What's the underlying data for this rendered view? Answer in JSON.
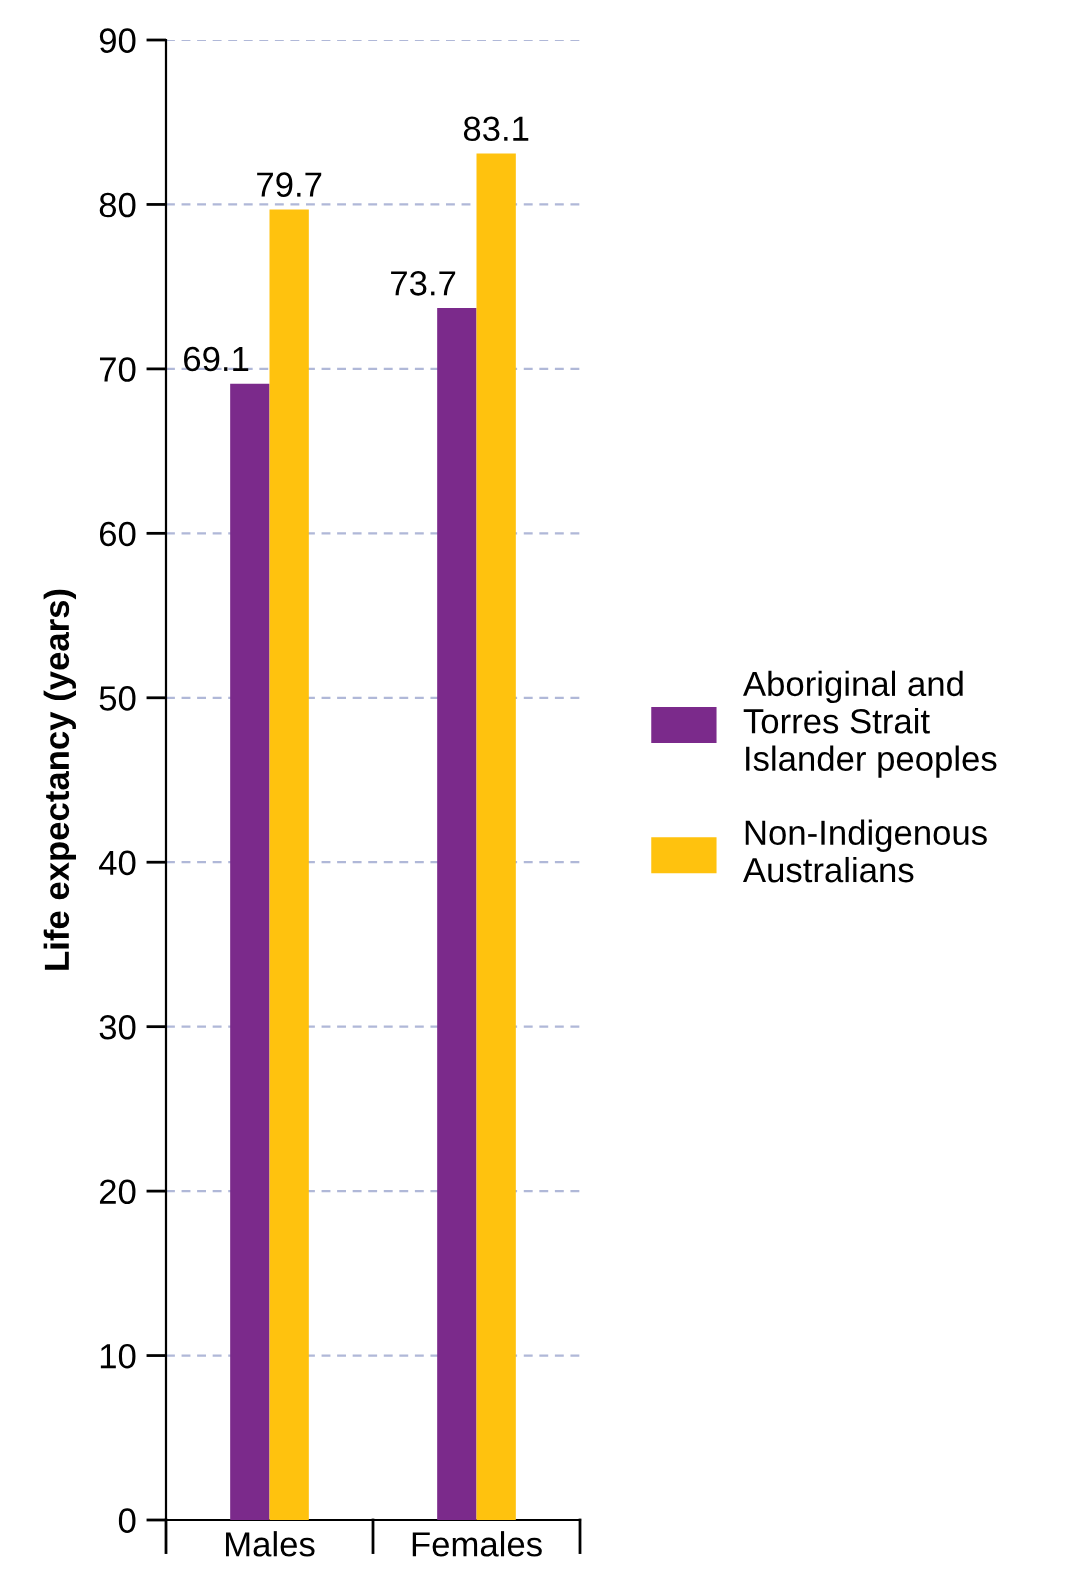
{
  "chart_data": {
    "type": "bar",
    "ylabel": "Life expectancy (years)",
    "categories": [
      "Males",
      "Females"
    ],
    "series": [
      {
        "name": "Aboriginal and\nTorres Strait\nIslander peoples",
        "color": "#7b2a8b",
        "values": [
          69.1,
          73.7
        ]
      },
      {
        "name": "Non-Indigenous\nAustralians",
        "color": "#ffc20e",
        "values": [
          79.7,
          83.1
        ]
      }
    ],
    "ylim": [
      0,
      90
    ],
    "yticks": [
      0,
      10,
      20,
      30,
      40,
      50,
      60,
      70,
      80,
      90
    ],
    "grid": "y",
    "legend": "right",
    "data_labels": true
  }
}
